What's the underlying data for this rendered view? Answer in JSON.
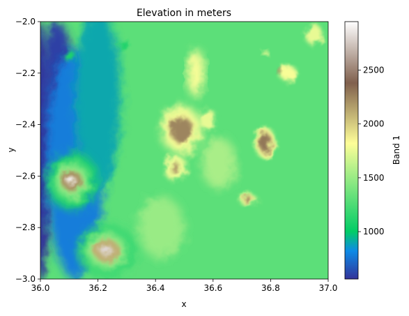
{
  "chart_data": {
    "type": "heatmap",
    "title": "Elevation in meters",
    "xlabel": "x",
    "ylabel": "y",
    "xlim": [
      36.0,
      37.0
    ],
    "ylim": [
      -3.0,
      -2.0
    ],
    "xticks": [
      {
        "value": 36.0,
        "label": "36.0"
      },
      {
        "value": 36.2,
        "label": "36.2"
      },
      {
        "value": 36.4,
        "label": "36.4"
      },
      {
        "value": 36.6,
        "label": "36.6"
      },
      {
        "value": 36.8,
        "label": "36.8"
      },
      {
        "value": 37.0,
        "label": "37.0"
      }
    ],
    "yticks": [
      {
        "value": -2.0,
        "label": "−2.0"
      },
      {
        "value": -2.2,
        "label": "−2.2"
      },
      {
        "value": -2.4,
        "label": "−2.4"
      },
      {
        "value": -2.6,
        "label": "−2.6"
      },
      {
        "value": -2.8,
        "label": "−2.8"
      },
      {
        "value": -3.0,
        "label": "−3.0"
      }
    ],
    "colorbar": {
      "label": "Band 1",
      "colormap": "terrain",
      "range": [
        560,
        2950
      ],
      "ticks": [
        {
          "value": 1000,
          "label": "1000"
        },
        {
          "value": 1500,
          "label": "1500"
        },
        {
          "value": 2000,
          "label": "2000"
        },
        {
          "value": 2500,
          "label": "2500"
        }
      ],
      "stops": [
        {
          "value": 560,
          "color": "#333399"
        },
        {
          "value": 820,
          "color": "#0d8ae6"
        },
        {
          "value": 1000,
          "color": "#01cc66"
        },
        {
          "value": 1500,
          "color": "#99eb85"
        },
        {
          "value": 1820,
          "color": "#fefe98"
        },
        {
          "value": 2380,
          "color": "#80604d"
        },
        {
          "value": 2950,
          "color": "#ffffff"
        }
      ]
    },
    "background_elevation": 1300,
    "terrain_features": [
      {
        "x": 36.0,
        "y": -2.5,
        "rx": 0.04,
        "ry": 0.5,
        "elevation": 560
      },
      {
        "x": 36.06,
        "y": -2.3,
        "rx": 0.06,
        "ry": 0.3,
        "elevation": 600
      },
      {
        "x": 36.12,
        "y": -2.55,
        "rx": 0.1,
        "ry": 0.45,
        "elevation": 780
      },
      {
        "x": 36.2,
        "y": -2.3,
        "rx": 0.08,
        "ry": 0.35,
        "elevation": 900
      },
      {
        "x": 36.11,
        "y": -2.62,
        "rx": 0.09,
        "ry": 0.11,
        "elevation": 1100
      },
      {
        "x": 36.11,
        "y": -2.62,
        "rx": 0.06,
        "ry": 0.07,
        "elevation": 1500
      },
      {
        "x": 36.11,
        "y": -2.62,
        "rx": 0.035,
        "ry": 0.04,
        "elevation": 2200
      },
      {
        "x": 36.11,
        "y": -2.62,
        "rx": 0.015,
        "ry": 0.015,
        "elevation": 2900
      },
      {
        "x": 36.23,
        "y": -2.89,
        "rx": 0.1,
        "ry": 0.1,
        "elevation": 1150
      },
      {
        "x": 36.23,
        "y": -2.89,
        "rx": 0.07,
        "ry": 0.07,
        "elevation": 1500
      },
      {
        "x": 36.23,
        "y": -2.89,
        "rx": 0.045,
        "ry": 0.045,
        "elevation": 2100
      },
      {
        "x": 36.23,
        "y": -2.89,
        "rx": 0.02,
        "ry": 0.02,
        "elevation": 2800
      },
      {
        "x": 36.1,
        "y": -2.13,
        "rx": 0.02,
        "ry": 0.02,
        "elevation": 1100
      },
      {
        "x": 36.29,
        "y": -2.09,
        "rx": 0.02,
        "ry": 0.015,
        "elevation": 1100
      },
      {
        "x": 36.49,
        "y": -2.42,
        "rx": 0.07,
        "ry": 0.09,
        "elevation": 1800
      },
      {
        "x": 36.49,
        "y": -2.42,
        "rx": 0.04,
        "ry": 0.05,
        "elevation": 2250
      },
      {
        "x": 36.54,
        "y": -2.2,
        "rx": 0.03,
        "ry": 0.09,
        "elevation": 1800
      },
      {
        "x": 36.58,
        "y": -2.38,
        "rx": 0.03,
        "ry": 0.04,
        "elevation": 1750
      },
      {
        "x": 36.47,
        "y": -2.57,
        "rx": 0.04,
        "ry": 0.05,
        "elevation": 1750
      },
      {
        "x": 36.47,
        "y": -2.57,
        "rx": 0.015,
        "ry": 0.02,
        "elevation": 2150
      },
      {
        "x": 36.78,
        "y": -2.47,
        "rx": 0.035,
        "ry": 0.06,
        "elevation": 1800
      },
      {
        "x": 36.78,
        "y": -2.47,
        "rx": 0.02,
        "ry": 0.04,
        "elevation": 2300
      },
      {
        "x": 36.72,
        "y": -2.69,
        "rx": 0.03,
        "ry": 0.02,
        "elevation": 1800
      },
      {
        "x": 36.72,
        "y": -2.69,
        "rx": 0.015,
        "ry": 0.01,
        "elevation": 2300
      },
      {
        "x": 36.86,
        "y": -2.2,
        "rx": 0.03,
        "ry": 0.03,
        "elevation": 1800
      },
      {
        "x": 36.83,
        "y": -2.19,
        "rx": 0.01,
        "ry": 0.01,
        "elevation": 2200
      },
      {
        "x": 36.95,
        "y": -2.05,
        "rx": 0.03,
        "ry": 0.04,
        "elevation": 1750
      },
      {
        "x": 36.78,
        "y": -2.12,
        "rx": 0.01,
        "ry": 0.01,
        "elevation": 1800
      },
      {
        "x": 36.42,
        "y": -2.8,
        "rx": 0.08,
        "ry": 0.12,
        "elevation": 1500
      },
      {
        "x": 36.62,
        "y": -2.55,
        "rx": 0.06,
        "ry": 0.1,
        "elevation": 1550
      }
    ]
  }
}
